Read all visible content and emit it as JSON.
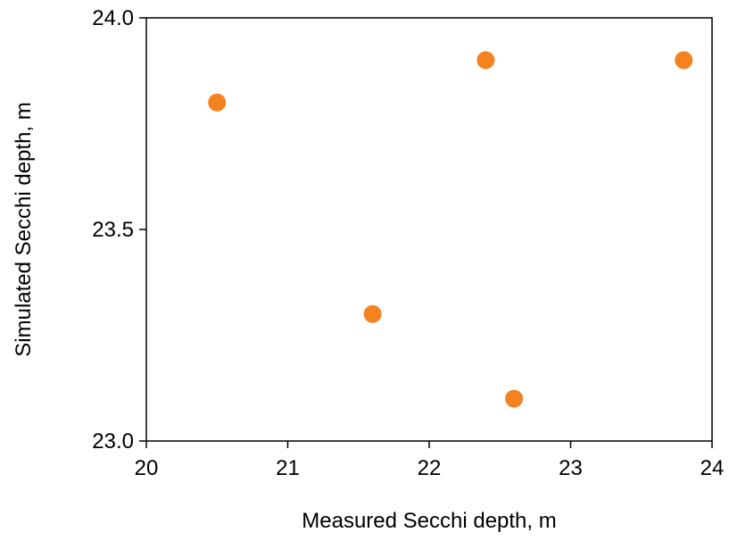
{
  "chart_data": {
    "type": "scatter",
    "title": "",
    "xlabel": "Measured Secchi depth, m",
    "ylabel": "Simulated Secchi depth, m",
    "xlim": [
      20,
      24
    ],
    "ylim": [
      23.0,
      24.0
    ],
    "x_ticks": [
      "20",
      "21",
      "22",
      "23",
      "24"
    ],
    "y_ticks": [
      "23.0",
      "23.5",
      "24.0"
    ],
    "grid": false,
    "legend": "none",
    "series": [
      {
        "color": "#F58220",
        "points": [
          {
            "x": 20.5,
            "y": 23.8
          },
          {
            "x": 21.6,
            "y": 23.3
          },
          {
            "x": 22.4,
            "y": 23.9
          },
          {
            "x": 22.6,
            "y": 23.1
          },
          {
            "x": 23.8,
            "y": 23.9
          }
        ]
      }
    ]
  }
}
